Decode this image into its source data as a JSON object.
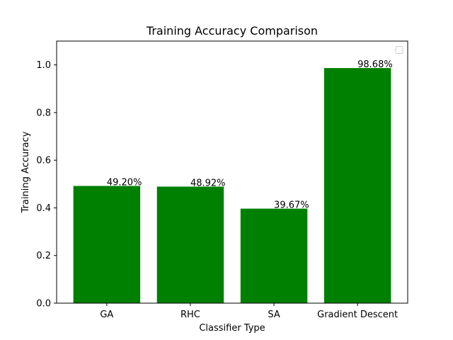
{
  "chart_data": {
    "type": "bar",
    "title": "Training Accuracy Comparison",
    "xlabel": "Classifier Type",
    "ylabel": "Training Accuracy",
    "categories": [
      "GA",
      "RHC",
      "SA",
      "Gradient Descent"
    ],
    "values": [
      0.492,
      0.4892,
      0.3967,
      0.9868
    ],
    "data_labels": [
      "49.20%",
      "48.92%",
      "39.67%",
      "98.68%"
    ],
    "ylim": [
      0,
      1.1
    ],
    "yticks": [
      0.0,
      0.2,
      0.4,
      0.6,
      0.8,
      1.0
    ],
    "ytick_labels": [
      "0.0",
      "0.2",
      "0.4",
      "0.6",
      "0.8",
      "1.0"
    ],
    "bar_color": "#008000",
    "grid": false,
    "legend": {
      "placement": "top-right",
      "entries": []
    }
  }
}
